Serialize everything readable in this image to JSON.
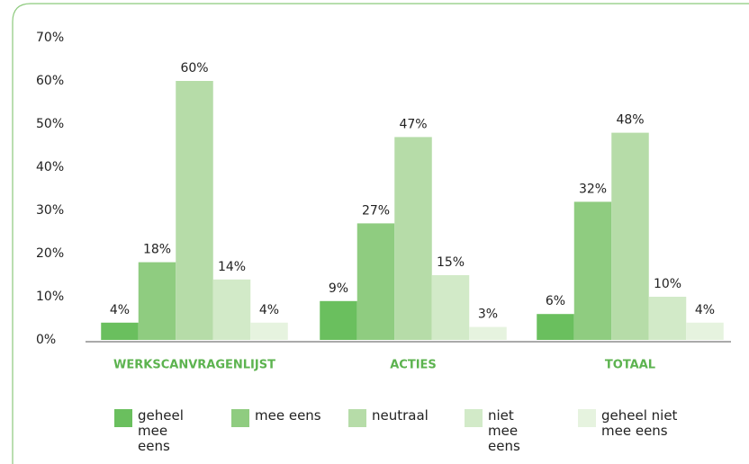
{
  "chart_data": {
    "type": "bar",
    "categories": [
      "WERKSCANVRAGENLIJST",
      "ACTIES",
      "TOTAAL"
    ],
    "series": [
      {
        "name": "geheel mee eens",
        "color": "#6abf5e",
        "values": [
          4,
          9,
          6
        ],
        "value_labels": [
          "4%",
          "9%",
          "6%"
        ]
      },
      {
        "name": "mee eens",
        "color": "#8fcc80",
        "values": [
          18,
          27,
          32
        ],
        "value_labels": [
          "18%",
          "27%",
          "32%"
        ]
      },
      {
        "name": "neutraal",
        "color": "#b6dca8",
        "values": [
          60,
          47,
          48
        ],
        "value_labels": [
          "60%",
          "47%",
          "48%"
        ]
      },
      {
        "name": "niet mee eens",
        "color": "#d2eac8",
        "values": [
          14,
          15,
          10
        ],
        "value_labels": [
          "14%",
          "15%",
          "10%"
        ]
      },
      {
        "name": "geheel niet mee eens",
        "color": "#e6f3df",
        "values": [
          4,
          3,
          4
        ],
        "value_labels": [
          "4%",
          "3%",
          "4%"
        ]
      }
    ],
    "ylim": [
      0,
      70
    ],
    "yticks": [
      {
        "value": 0,
        "label": "0%"
      },
      {
        "value": 10,
        "label": "10%"
      },
      {
        "value": 20,
        "label": "20%"
      },
      {
        "value": 30,
        "label": "30%"
      },
      {
        "value": 40,
        "label": "40%"
      },
      {
        "value": 50,
        "label": "50%"
      },
      {
        "value": 60,
        "label": "60%"
      },
      {
        "value": 70,
        "label": "70%"
      }
    ],
    "grid": false,
    "legend": "bottom"
  }
}
